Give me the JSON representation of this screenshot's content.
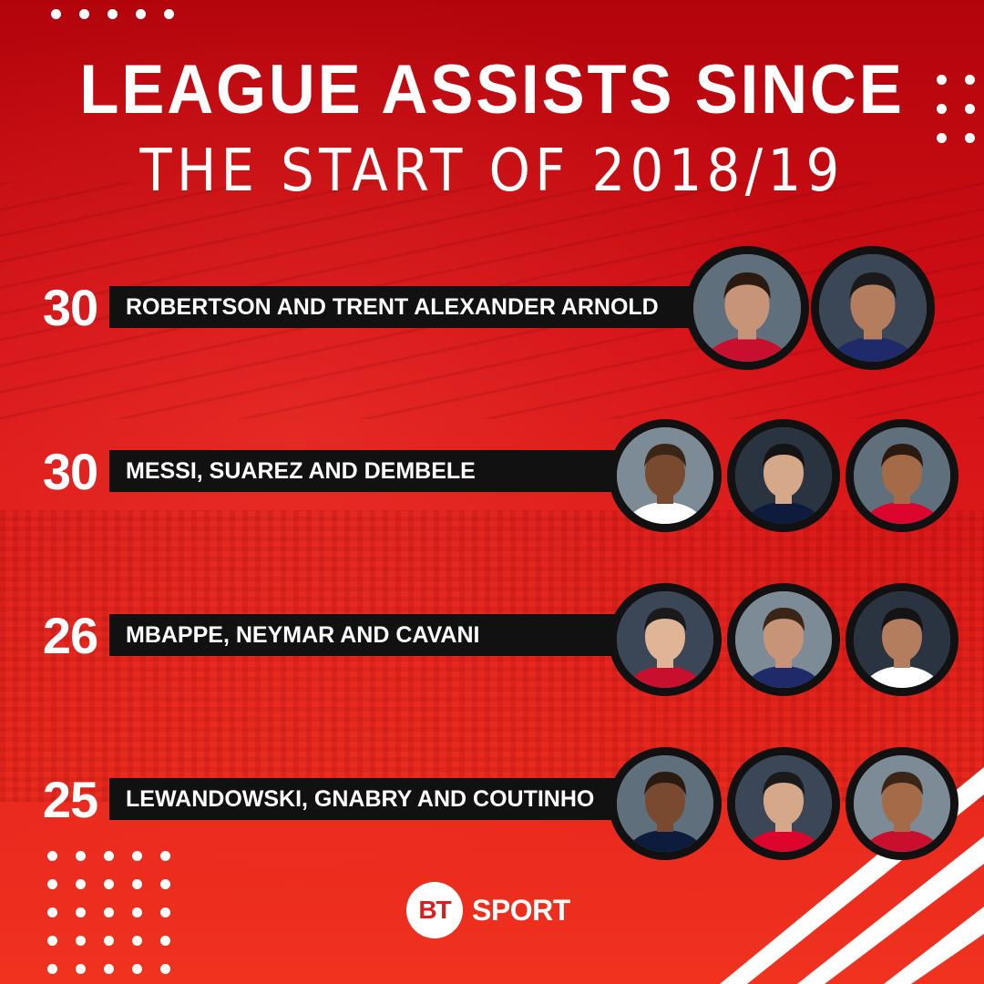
{
  "title": {
    "line1": "LEAGUE ASSISTS SINCE",
    "line2": "THE START OF 2018/19"
  },
  "chart_data": {
    "type": "table",
    "rows": [
      {
        "rank_value": "30",
        "value": 30,
        "label": "ROBERTSON AND TRENT ALEXANDER ARNOLD",
        "players": 2
      },
      {
        "rank_value": "30",
        "value": 30,
        "label": "MESSI, SUAREZ AND DEMBELE",
        "players": 3
      },
      {
        "rank_value": "26",
        "value": 26,
        "label": "MBAPPE, NEYMAR AND CAVANI",
        "players": 3
      },
      {
        "rank_value": "25",
        "value": 25,
        "label": "LEWANDOWSKI, GNABRY AND COUTINHO",
        "players": 3
      }
    ]
  },
  "colors": {
    "background": "#d20f16",
    "bar": "#111111",
    "text": "#ffffff",
    "logo_red": "#e01b1b"
  },
  "logo": {
    "mark": "BT",
    "word": "SPORT"
  }
}
